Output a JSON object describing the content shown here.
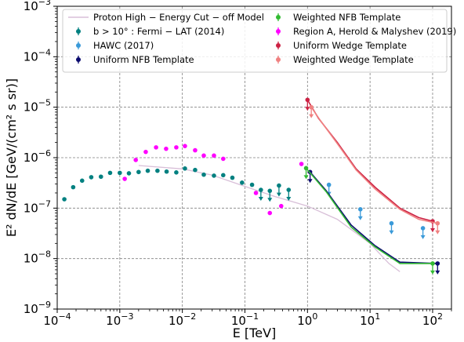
{
  "chart_data": {
    "type": "scatter",
    "xlabel": "E [TeV]",
    "ylabel": "E² dN/dE [GeV/(cm² s sr)]",
    "x_scale": "log",
    "y_scale": "log",
    "xlim": [
      0.0001,
      200
    ],
    "ylim": [
      1e-09,
      0.001
    ],
    "grid": true,
    "legend_position": "top",
    "x_ticks": [
      {
        "value": 0.0001,
        "base": "10",
        "exp": "−4"
      },
      {
        "value": 0.001,
        "base": "10",
        "exp": "−3"
      },
      {
        "value": 0.01,
        "base": "10",
        "exp": "−2"
      },
      {
        "value": 0.1,
        "base": "10",
        "exp": "−1"
      },
      {
        "value": 1,
        "base": "10",
        "exp": "0"
      },
      {
        "value": 10,
        "base": "10",
        "exp": "1"
      },
      {
        "value": 100,
        "base": "10",
        "exp": "2"
      }
    ],
    "y_ticks": [
      {
        "value": 1e-09,
        "base": "10",
        "exp": "−9"
      },
      {
        "value": 1e-08,
        "base": "10",
        "exp": "−8"
      },
      {
        "value": 1e-07,
        "base": "10",
        "exp": "−7"
      },
      {
        "value": 1e-06,
        "base": "10",
        "exp": "−6"
      },
      {
        "value": 1e-05,
        "base": "10",
        "exp": "−5"
      },
      {
        "value": 0.0001,
        "base": "10",
        "exp": "−4"
      },
      {
        "value": 0.001,
        "base": "10",
        "exp": "−3"
      }
    ],
    "series": [
      {
        "name": "Proton High − Energy Cut − off Model",
        "kind": "line",
        "color": "#d8bfd8",
        "points": [
          [
            0.002,
            7e-07
          ],
          [
            0.01,
            6e-07
          ],
          [
            0.03,
            4.5e-07
          ],
          [
            0.1,
            2.7e-07
          ],
          [
            0.3,
            1.7e-07
          ],
          [
            1,
            1.1e-07
          ],
          [
            3,
            6e-08
          ],
          [
            10,
            2e-08
          ],
          [
            20,
            8e-09
          ],
          [
            30,
            5.5e-09
          ]
        ]
      },
      {
        "name": "b > 10° :  Fermi − LAT (2014)",
        "kind": "points",
        "color": "#008080",
        "points": [
          [
            0.00013,
            1.5e-07
          ],
          [
            0.00018,
            2.6e-07
          ],
          [
            0.00025,
            3.5e-07
          ],
          [
            0.00035,
            4.1e-07
          ],
          [
            0.0005,
            4.2e-07
          ],
          [
            0.0007,
            5e-07
          ],
          [
            0.001,
            5e-07
          ],
          [
            0.0014,
            4.9e-07
          ],
          [
            0.002,
            5.2e-07
          ],
          [
            0.0028,
            5.5e-07
          ],
          [
            0.004,
            5.5e-07
          ],
          [
            0.0056,
            5.3e-07
          ],
          [
            0.008,
            5.1e-07
          ],
          [
            0.011,
            6.1e-07
          ],
          [
            0.016,
            5.7e-07
          ],
          [
            0.022,
            4.6e-07
          ],
          [
            0.032,
            4.4e-07
          ],
          [
            0.045,
            4.5e-07
          ],
          [
            0.063,
            4e-07
          ],
          [
            0.09,
            3.2e-07
          ],
          [
            0.13,
            2.9e-07
          ],
          [
            0.18,
            2.3e-07
          ],
          [
            0.25,
            2.2e-07
          ],
          [
            0.35,
            2.8e-07
          ],
          [
            0.5,
            2.3e-07
          ]
        ],
        "upper_limits": [
          [
            0.18,
            2.3e-07
          ],
          [
            0.25,
            2.2e-07
          ],
          [
            0.35,
            2.8e-07
          ],
          [
            0.5,
            2.3e-07
          ]
        ]
      },
      {
        "name": "HAWC (2017)",
        "kind": "points",
        "color": "#3a9ad9",
        "points": [
          [
            2.2,
            2.9e-07
          ],
          [
            7,
            9.5e-08
          ],
          [
            22,
            5e-08
          ],
          [
            70,
            4e-08
          ]
        ],
        "upper_limits": [
          [
            2.2,
            2.9e-07
          ],
          [
            7,
            9.5e-08
          ],
          [
            22,
            5e-08
          ],
          [
            70,
            4e-08
          ]
        ]
      },
      {
        "name": "Uniform NFB Template",
        "kind": "line_points",
        "color": "#0a0a6e",
        "points": [
          [
            1.1,
            5.2e-07
          ],
          [
            2,
            2.2e-07
          ],
          [
            5,
            4.6e-08
          ],
          [
            12,
            1.8e-08
          ],
          [
            30,
            8.5e-09
          ],
          [
            120,
            8e-09
          ]
        ],
        "markers": [
          [
            1.1,
            5.2e-07
          ],
          [
            120,
            8e-09
          ]
        ],
        "upper_limits": [
          [
            1.1,
            5.2e-07
          ],
          [
            120,
            8e-09
          ]
        ]
      },
      {
        "name": "Weighted NFB Template",
        "kind": "line_points",
        "color": "#33bb33",
        "points": [
          [
            0.95,
            6.2e-07
          ],
          [
            2,
            2.1e-07
          ],
          [
            5,
            4.2e-08
          ],
          [
            12,
            1.7e-08
          ],
          [
            30,
            8e-09
          ],
          [
            100,
            8e-09
          ]
        ],
        "markers": [
          [
            0.95,
            6.2e-07
          ],
          [
            100,
            8e-09
          ]
        ],
        "upper_limits": [
          [
            0.95,
            6.2e-07
          ],
          [
            100,
            8e-09
          ]
        ]
      },
      {
        "name": "Region A,  Herold & Malyshev (2019)",
        "kind": "points",
        "color": "#ff00ff",
        "points": [
          [
            0.0012,
            3.8e-07
          ],
          [
            0.0018,
            9e-07
          ],
          [
            0.0026,
            1.3e-06
          ],
          [
            0.0038,
            1.6e-06
          ],
          [
            0.0055,
            1.5e-06
          ],
          [
            0.008,
            1.6e-06
          ],
          [
            0.011,
            1.7e-06
          ],
          [
            0.016,
            1.4e-06
          ],
          [
            0.022,
            1.1e-06
          ],
          [
            0.032,
            1.1e-06
          ],
          [
            0.045,
            9.5e-07
          ],
          [
            0.15,
            2e-07
          ],
          [
            0.25,
            8e-08
          ],
          [
            0.38,
            1.1e-07
          ],
          [
            0.8,
            7.5e-07
          ]
        ]
      },
      {
        "name": "Uniform Wedge Template",
        "kind": "line_points",
        "color": "#cc2244",
        "points": [
          [
            1,
            1.4e-05
          ],
          [
            1.5,
            6e-06
          ],
          [
            3,
            2e-06
          ],
          [
            6,
            6e-07
          ],
          [
            12,
            2.6e-07
          ],
          [
            30,
            1e-07
          ],
          [
            60,
            6.5e-08
          ],
          [
            100,
            5.5e-08
          ]
        ],
        "markers": [
          [
            1,
            1.4e-05
          ],
          [
            100,
            5.5e-08
          ]
        ],
        "upper_limits": [
          [
            1,
            1.4e-05
          ],
          [
            100,
            5.5e-08
          ]
        ]
      },
      {
        "name": "Weighted Wedge Template",
        "kind": "line_points",
        "color": "#f08080",
        "points": [
          [
            1.15,
            1e-05
          ],
          [
            1.6,
            5.5e-06
          ],
          [
            3,
            1.9e-06
          ],
          [
            6,
            5.7e-07
          ],
          [
            12,
            2.4e-07
          ],
          [
            30,
            9.5e-08
          ],
          [
            60,
            6e-08
          ],
          [
            120,
            5e-08
          ]
        ],
        "markers": [
          [
            1.15,
            1e-05
          ],
          [
            120,
            5e-08
          ]
        ],
        "upper_limits": [
          [
            1.15,
            1e-05
          ],
          [
            120,
            5e-08
          ]
        ]
      }
    ]
  }
}
